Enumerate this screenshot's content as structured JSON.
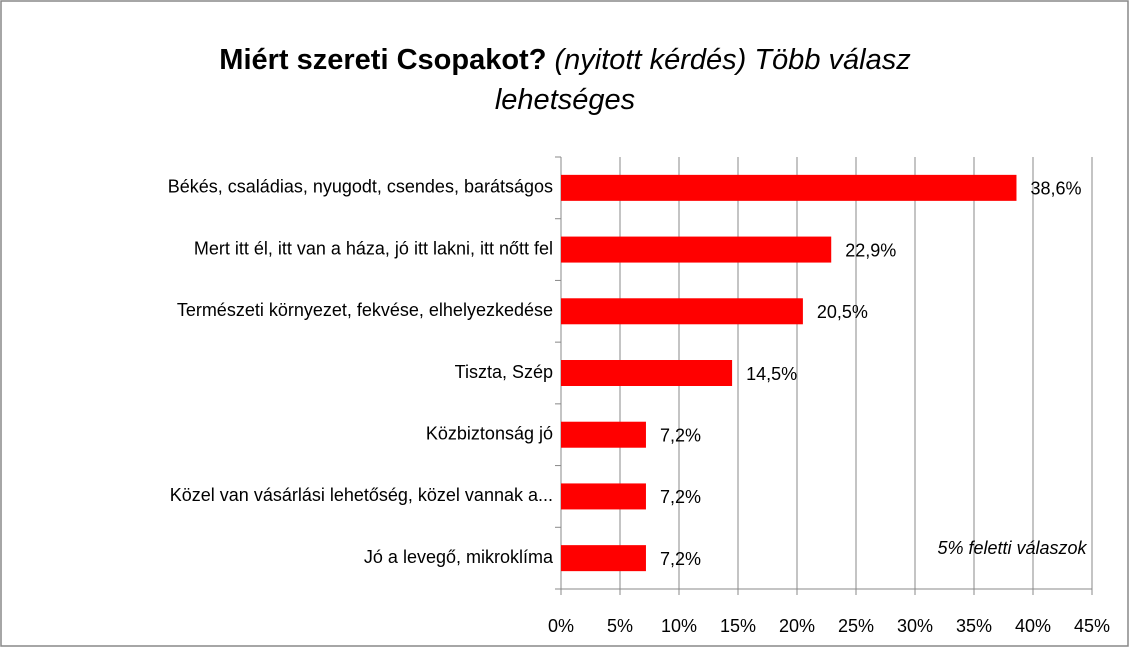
{
  "chart_data": {
    "type": "bar",
    "title": "Miért szereti Csopakot?",
    "subtitle": "(nyitott kérdés) Több válasz lehetséges",
    "annotation": "5% feletti válaszok",
    "categories": [
      "Békés, családias, nyugodt, csendes, barátságos",
      "Mert itt él, itt van a háza, jó itt lakni, itt nőtt fel",
      "Természeti környezet, fekvése, elhelyezkedése",
      "Tiszta, Szép",
      "Közbiztonság jó",
      "Közel van vásárlási lehetőség, közel vannak a...",
      "Jó a levegő, mikroklíma"
    ],
    "values": [
      38.6,
      22.9,
      20.5,
      14.5,
      7.2,
      7.2,
      7.2
    ],
    "value_labels": [
      "38,6%",
      "22,9%",
      "20,5%",
      "14,5%",
      "7,2%",
      "7,2%",
      "7,2%"
    ],
    "color": "#ff0000",
    "xlim": [
      0,
      45
    ],
    "xticks": [
      {
        "value": 0,
        "label": "0%"
      },
      {
        "value": 5,
        "label": "5%"
      },
      {
        "value": 10,
        "label": "10%"
      },
      {
        "value": 15,
        "label": "15%"
      },
      {
        "value": 20,
        "label": "20%"
      },
      {
        "value": 25,
        "label": "25%"
      },
      {
        "value": 30,
        "label": "30%"
      },
      {
        "value": 35,
        "label": "35%"
      },
      {
        "value": 40,
        "label": "40%"
      },
      {
        "value": 45,
        "label": "45%"
      }
    ],
    "grid": true
  }
}
